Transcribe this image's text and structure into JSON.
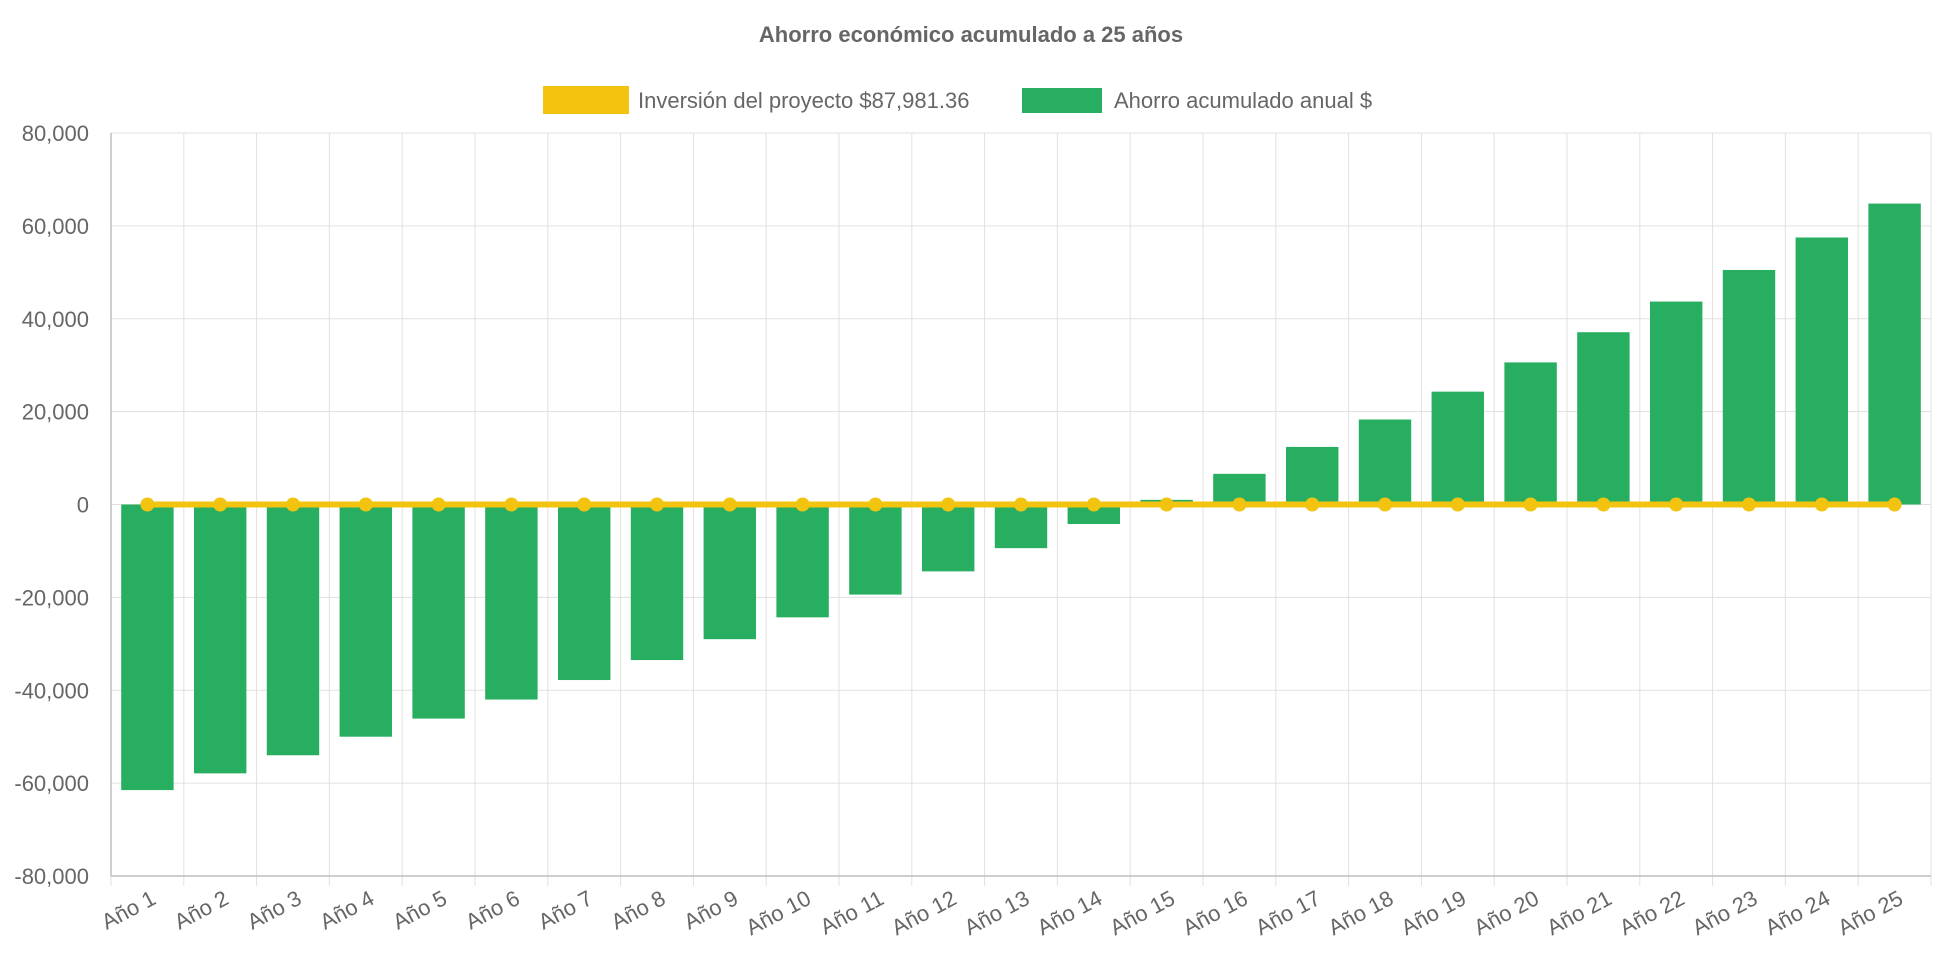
{
  "chart_data": {
    "type": "bar",
    "title": "Ahorro económico acumulado a 25 años",
    "categories": [
      "Año 1",
      "Año 2",
      "Año 3",
      "Año 4",
      "Año 5",
      "Año 6",
      "Año 7",
      "Año 8",
      "Año 9",
      "Año 10",
      "Año 11",
      "Año 12",
      "Año 13",
      "Año 14",
      "Año 15",
      "Año 16",
      "Año 17",
      "Año 18",
      "Año 19",
      "Año 20",
      "Año 21",
      "Año 22",
      "Año 23",
      "Año 24",
      "Año 25"
    ],
    "series": [
      {
        "name": "Inversión del proyecto $87,981.36",
        "type": "line",
        "color": "#f2c40f",
        "values": [
          0,
          0,
          0,
          0,
          0,
          0,
          0,
          0,
          0,
          0,
          0,
          0,
          0,
          0,
          0,
          0,
          0,
          0,
          0,
          0,
          0,
          0,
          0,
          0,
          0
        ]
      },
      {
        "name": "Ahorro acumulado anual $",
        "type": "bar",
        "color": "#27ae60",
        "values": [
          -61500,
          -57900,
          -54000,
          -50000,
          -46100,
          -42000,
          -37800,
          -33500,
          -29000,
          -24300,
          -19400,
          -14400,
          -9400,
          -4200,
          1000,
          6600,
          12400,
          18300,
          24300,
          30600,
          37100,
          43700,
          50500,
          57500,
          64800
        ]
      }
    ],
    "ylim": [
      -80000,
      80000
    ],
    "y_ticks": [
      "80,000",
      "60,000",
      "40,000",
      "20,000",
      "0",
      "-20,000",
      "-40,000",
      "-60,000",
      "-80,000"
    ],
    "y_tick_values": [
      80000,
      60000,
      40000,
      20000,
      0,
      -20000,
      -40000,
      -60000,
      -80000
    ],
    "xlabel": "",
    "ylabel": "",
    "grid": true,
    "legend": "top-center"
  }
}
